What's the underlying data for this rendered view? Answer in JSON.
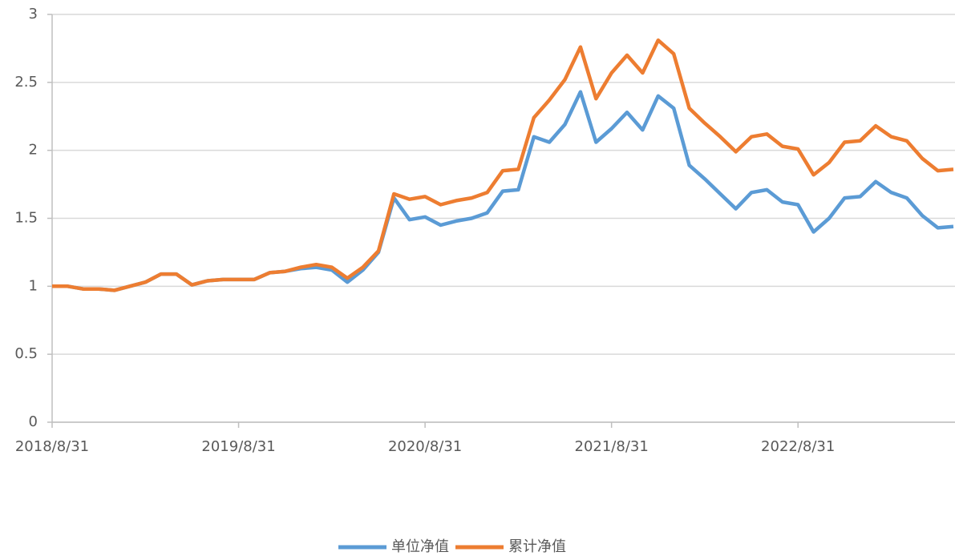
{
  "chart_data": {
    "type": "line",
    "categories": [
      "2018/8/31",
      null,
      null,
      null,
      null,
      null,
      null,
      null,
      null,
      null,
      null,
      null,
      "2019/8/31",
      null,
      null,
      null,
      null,
      null,
      null,
      null,
      null,
      null,
      null,
      null,
      "2020/8/31",
      null,
      null,
      null,
      null,
      null,
      null,
      null,
      null,
      null,
      null,
      null,
      "2021/8/31",
      null,
      null,
      null,
      null,
      null,
      null,
      null,
      null,
      null,
      null,
      null,
      "2022/8/31",
      null,
      null,
      null,
      null,
      null,
      null,
      null,
      null,
      null,
      null
    ],
    "series": [
      {
        "name": "单位净值",
        "color": "#5b9bd5",
        "values": [
          1.0,
          1.0,
          0.98,
          0.98,
          0.97,
          1.0,
          1.03,
          1.09,
          1.09,
          1.01,
          1.04,
          1.05,
          1.05,
          1.05,
          1.1,
          1.11,
          1.13,
          1.14,
          1.12,
          1.03,
          1.12,
          1.25,
          1.65,
          1.49,
          1.51,
          1.45,
          1.48,
          1.5,
          1.54,
          1.7,
          1.71,
          2.1,
          2.06,
          2.19,
          2.43,
          2.06,
          2.16,
          2.28,
          2.15,
          2.4,
          2.31,
          1.89,
          1.79,
          1.68,
          1.57,
          1.69,
          1.71,
          1.62,
          1.6,
          1.4,
          1.5,
          1.65,
          1.66,
          1.77,
          1.69,
          1.65,
          1.52,
          1.43,
          1.44
        ]
      },
      {
        "name": "累计净值",
        "color": "#ed7d31",
        "values": [
          1.0,
          1.0,
          0.98,
          0.98,
          0.97,
          1.0,
          1.03,
          1.09,
          1.09,
          1.01,
          1.04,
          1.05,
          1.05,
          1.05,
          1.1,
          1.11,
          1.14,
          1.16,
          1.14,
          1.06,
          1.14,
          1.26,
          1.68,
          1.64,
          1.66,
          1.6,
          1.63,
          1.65,
          1.69,
          1.85,
          1.86,
          2.24,
          2.37,
          2.52,
          2.76,
          2.38,
          2.57,
          2.7,
          2.57,
          2.81,
          2.71,
          2.31,
          2.2,
          2.1,
          1.99,
          2.1,
          2.12,
          2.03,
          2.01,
          1.82,
          1.91,
          2.06,
          2.07,
          2.18,
          2.1,
          2.07,
          1.94,
          1.85,
          1.86
        ]
      }
    ],
    "ylim": [
      0,
      3
    ],
    "yticks": [
      0,
      0.5,
      1,
      1.5,
      2,
      2.5,
      3
    ],
    "grid": true,
    "legend": "bottom"
  }
}
